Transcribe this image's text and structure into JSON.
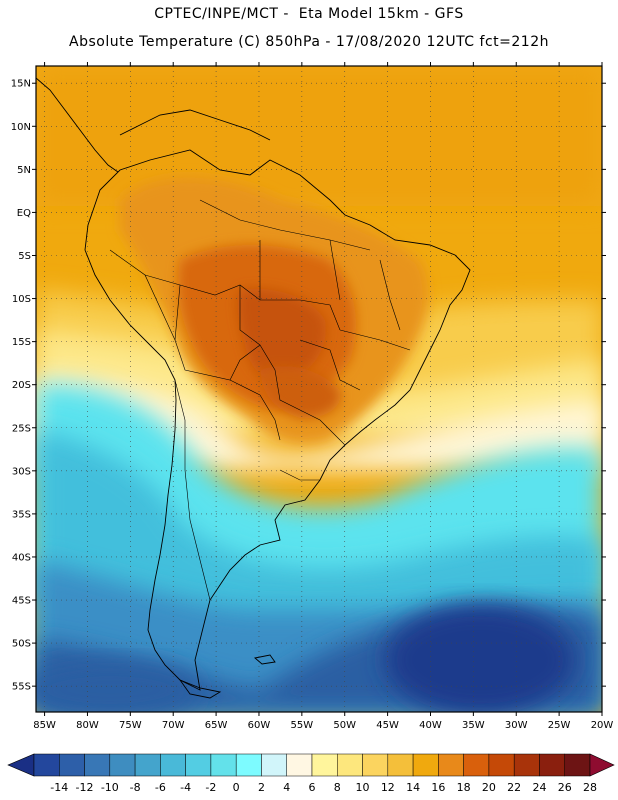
{
  "header": {
    "line1": "CPTEC/INPE/MCT -  Eta Model 15km - GFS",
    "line2": "Absolute Temperature (C) 850hPa - 17/08/2020 12UTC fct=212h"
  },
  "map": {
    "lon_range": [
      -86,
      -20
    ],
    "lat_range": [
      17,
      -58
    ],
    "lat_ticks": [
      {
        "v": 15,
        "label": "15N"
      },
      {
        "v": 10,
        "label": "10N"
      },
      {
        "v": 5,
        "label": "5N"
      },
      {
        "v": 0,
        "label": "EQ"
      },
      {
        "v": -5,
        "label": "5S"
      },
      {
        "v": -10,
        "label": "10S"
      },
      {
        "v": -15,
        "label": "15S"
      },
      {
        "v": -20,
        "label": "20S"
      },
      {
        "v": -25,
        "label": "25S"
      },
      {
        "v": -30,
        "label": "30S"
      },
      {
        "v": -35,
        "label": "35S"
      },
      {
        "v": -40,
        "label": "40S"
      },
      {
        "v": -45,
        "label": "45S"
      },
      {
        "v": -50,
        "label": "50S"
      },
      {
        "v": -55,
        "label": "55S"
      }
    ],
    "lon_ticks": [
      {
        "v": -85,
        "label": "85W"
      },
      {
        "v": -80,
        "label": "80W"
      },
      {
        "v": -75,
        "label": "75W"
      },
      {
        "v": -70,
        "label": "70W"
      },
      {
        "v": -65,
        "label": "65W"
      },
      {
        "v": -60,
        "label": "60W"
      },
      {
        "v": -55,
        "label": "55W"
      },
      {
        "v": -50,
        "label": "50W"
      },
      {
        "v": -45,
        "label": "45W"
      },
      {
        "v": -40,
        "label": "40W"
      },
      {
        "v": -35,
        "label": "35W"
      },
      {
        "v": -30,
        "label": "30W"
      },
      {
        "v": -25,
        "label": "25W"
      },
      {
        "v": -20,
        "label": "20W"
      }
    ],
    "grid": "dotted",
    "colors": {
      "ocean_warm": "#f0a90e",
      "land_warm": "#e8941a",
      "land_hot": "#d8680c",
      "land_hottest": "#c6530a",
      "temperate": "#fde88a",
      "cool": "#fff6d6",
      "mild_cyan": "#5ce3ee",
      "teal": "#43bfdc",
      "blue": "#3a8fc6",
      "deep_blue": "#2b5fa3",
      "navy": "#1f3b8c"
    }
  },
  "colorbar": {
    "labels": [
      "-14",
      "-12",
      "-10",
      "-8",
      "-6",
      "-4",
      "-2",
      "0",
      "2",
      "4",
      "6",
      "8",
      "10",
      "12",
      "14",
      "16",
      "18",
      "20",
      "22",
      "24",
      "26",
      "28"
    ],
    "colors": [
      "#1a2f85",
      "#23479d",
      "#2d5fa9",
      "#3877b6",
      "#3e8dc0",
      "#44a4cc",
      "#49b9d8",
      "#53cde3",
      "#63e1ea",
      "#7dfbff",
      "#d1f5fa",
      "#fff7e3",
      "#fff59c",
      "#fde77d",
      "#fbd45f",
      "#f4bf3a",
      "#f0a90e",
      "#e8891a",
      "#d9600c",
      "#c54907",
      "#a8330a",
      "#8a1f0e",
      "#6d1414",
      "#8e0c30"
    ]
  }
}
